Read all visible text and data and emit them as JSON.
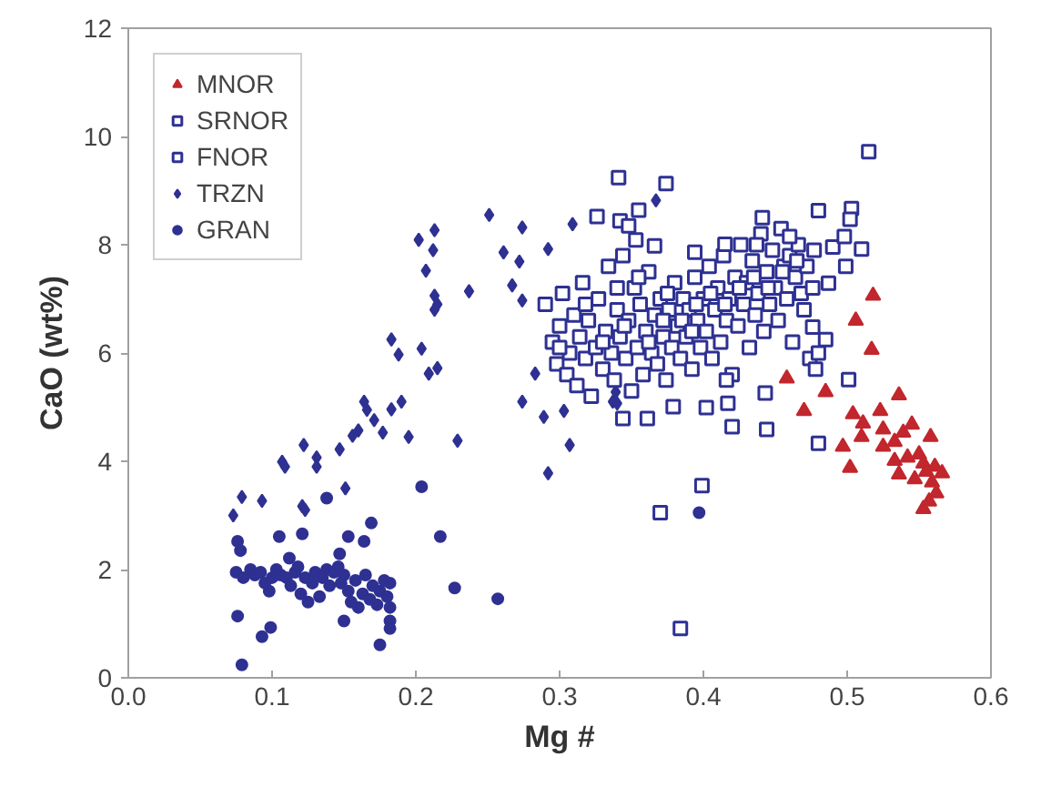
{
  "chart_data": {
    "type": "scatter",
    "xlabel": "Mg #",
    "ylabel": "CaO (wt%)",
    "xlim": [
      0,
      0.6
    ],
    "ylim": [
      0,
      12
    ],
    "xticks": [
      {
        "value": 0,
        "label": "0.0"
      },
      0.1,
      0.2,
      0.3,
      0.4,
      0.5,
      0.6
    ],
    "yticks": [
      0,
      2,
      4,
      6,
      8,
      10,
      12
    ],
    "grid": false,
    "legend": "top left",
    "series": [
      {
        "name": "MNOR",
        "color": "#c1272d",
        "marker": "triangle",
        "x": [
          0.518,
          0.506,
          0.517,
          0.458,
          0.485,
          0.536,
          0.47,
          0.504,
          0.523,
          0.511,
          0.51,
          0.525,
          0.497,
          0.502,
          0.525,
          0.533,
          0.539,
          0.545,
          0.558,
          0.533,
          0.536,
          0.542,
          0.547,
          0.55,
          0.553,
          0.555,
          0.561,
          0.566,
          0.559,
          0.562,
          0.557,
          0.553
        ],
        "values": [
          7.06,
          6.6,
          6.06,
          5.53,
          5.28,
          5.22,
          4.93,
          4.87,
          4.93,
          4.7,
          4.45,
          4.59,
          4.27,
          3.88,
          4.27,
          4.36,
          4.53,
          4.68,
          4.45,
          4.01,
          3.76,
          4.07,
          3.67,
          4.13,
          3.96,
          3.81,
          3.9,
          3.78,
          3.61,
          3.41,
          3.26,
          3.12
        ]
      },
      {
        "name": "SRNOR",
        "color": "#2e3192",
        "marker": "square",
        "x": [
          0.3,
          0.318,
          0.33,
          0.345,
          0.355,
          0.362,
          0.375,
          0.385,
          0.395,
          0.405,
          0.415,
          0.425,
          0.435,
          0.445,
          0.455,
          0.465,
          0.437,
          0.392,
          0.372,
          0.34,
          0.477,
          0.416
        ],
        "values": [
          6.1,
          6.9,
          6.2,
          6.5,
          7.4,
          6.2,
          7.1,
          6.6,
          6.9,
          7.1,
          6.9,
          7.2,
          7.4,
          7.2,
          7.5,
          7.7,
          8.0,
          6.4,
          6.6,
          7.2,
          7.9,
          5.5
        ]
      },
      {
        "name": "FNOR",
        "color": "#2e3192",
        "marker": "square",
        "x": [
          0.29,
          0.295,
          0.298,
          0.3,
          0.302,
          0.305,
          0.307,
          0.31,
          0.312,
          0.314,
          0.316,
          0.318,
          0.32,
          0.322,
          0.325,
          0.327,
          0.33,
          0.332,
          0.334,
          0.336,
          0.338,
          0.34,
          0.342,
          0.344,
          0.346,
          0.348,
          0.35,
          0.352,
          0.354,
          0.356,
          0.358,
          0.36,
          0.362,
          0.364,
          0.366,
          0.368,
          0.37,
          0.372,
          0.374,
          0.376,
          0.378,
          0.38,
          0.382,
          0.384,
          0.386,
          0.388,
          0.39,
          0.392,
          0.394,
          0.396,
          0.398,
          0.4,
          0.402,
          0.404,
          0.406,
          0.408,
          0.41,
          0.412,
          0.414,
          0.416,
          0.418,
          0.42,
          0.422,
          0.424,
          0.426,
          0.428,
          0.43,
          0.432,
          0.434,
          0.436,
          0.438,
          0.44,
          0.442,
          0.444,
          0.446,
          0.448,
          0.45,
          0.452,
          0.454,
          0.456,
          0.458,
          0.46,
          0.462,
          0.464,
          0.466,
          0.468,
          0.47,
          0.472,
          0.474,
          0.476,
          0.478,
          0.48,
          0.384,
          0.37,
          0.399,
          0.48,
          0.501,
          0.42,
          0.444,
          0.443,
          0.344,
          0.361,
          0.379,
          0.402,
          0.417,
          0.515,
          0.341,
          0.374,
          0.355,
          0.326,
          0.48,
          0.503,
          0.502,
          0.49,
          0.498,
          0.51,
          0.499,
          0.487,
          0.476,
          0.485,
          0.342,
          0.348,
          0.366,
          0.353,
          0.441,
          0.46,
          0.415,
          0.394
        ],
        "values": [
          6.9,
          6.2,
          5.8,
          6.5,
          7.1,
          5.6,
          6.0,
          6.7,
          5.4,
          6.3,
          7.3,
          5.9,
          6.6,
          5.2,
          6.1,
          7.0,
          5.7,
          6.4,
          7.6,
          6.0,
          5.5,
          6.8,
          6.3,
          7.8,
          5.9,
          6.6,
          5.3,
          7.2,
          6.1,
          6.9,
          5.6,
          6.4,
          7.5,
          6.0,
          6.7,
          5.8,
          7.0,
          6.3,
          5.5,
          6.8,
          6.1,
          7.3,
          6.5,
          5.9,
          7.0,
          6.3,
          6.8,
          5.7,
          7.4,
          6.6,
          6.1,
          7.0,
          6.4,
          7.6,
          5.9,
          6.8,
          7.2,
          6.2,
          7.8,
          6.6,
          7.0,
          5.6,
          7.4,
          6.5,
          8.0,
          6.9,
          7.3,
          6.1,
          7.7,
          6.7,
          7.1,
          8.2,
          6.4,
          7.5,
          6.9,
          7.9,
          7.2,
          6.6,
          8.3,
          7.6,
          7.0,
          7.8,
          6.2,
          7.4,
          8.0,
          7.1,
          6.8,
          7.6,
          5.9,
          7.2,
          5.7,
          6.0,
          0.91,
          3.05,
          3.55,
          4.33,
          5.51,
          4.64,
          4.59,
          5.26,
          4.79,
          4.79,
          5.01,
          4.99,
          5.07,
          9.72,
          9.24,
          9.13,
          8.64,
          8.52,
          8.63,
          8.67,
          8.47,
          7.96,
          8.15,
          7.92,
          7.6,
          7.29,
          6.48,
          6.25,
          8.44,
          8.35,
          7.98,
          8.09,
          8.5,
          8.15,
          8.01,
          7.86
        ]
      },
      {
        "name": "TRZN",
        "color": "#2e3192",
        "marker": "diamond",
        "x": [
          0.073,
          0.079,
          0.093,
          0.107,
          0.109,
          0.122,
          0.131,
          0.131,
          0.121,
          0.123,
          0.147,
          0.151,
          0.156,
          0.16,
          0.164,
          0.166,
          0.171,
          0.177,
          0.183,
          0.19,
          0.195,
          0.229,
          0.183,
          0.188,
          0.204,
          0.209,
          0.215,
          0.213,
          0.215,
          0.213,
          0.237,
          0.207,
          0.274,
          0.202,
          0.213,
          0.212,
          0.251,
          0.261,
          0.267,
          0.274,
          0.272,
          0.367,
          0.309,
          0.292,
          0.274,
          0.283,
          0.289,
          0.303,
          0.337,
          0.339,
          0.307,
          0.292,
          0.34
        ],
        "values": [
          3.0,
          3.34,
          3.27,
          3.99,
          3.9,
          4.3,
          4.07,
          3.9,
          3.17,
          3.1,
          4.22,
          3.5,
          4.47,
          4.57,
          5.1,
          4.95,
          4.76,
          4.53,
          4.96,
          5.1,
          4.45,
          4.38,
          6.25,
          5.97,
          6.08,
          5.62,
          5.72,
          7.06,
          6.9,
          6.8,
          7.14,
          7.52,
          5.1,
          8.09,
          8.27,
          7.9,
          8.55,
          7.86,
          7.25,
          8.32,
          7.69,
          8.82,
          8.38,
          7.92,
          6.97,
          5.62,
          4.82,
          4.93,
          5.1,
          5.28,
          4.3,
          3.78,
          5.07
        ]
      },
      {
        "name": "GRAN",
        "color": "#2e3192",
        "marker": "circle",
        "x": [
          0.204,
          0.217,
          0.227,
          0.257,
          0.138,
          0.169,
          0.079,
          0.093,
          0.099,
          0.076,
          0.15,
          0.175,
          0.182,
          0.182,
          0.105,
          0.121,
          0.076,
          0.078,
          0.153,
          0.164,
          0.147,
          0.112,
          0.397,
          0.075,
          0.08,
          0.085,
          0.088,
          0.092,
          0.095,
          0.098,
          0.1,
          0.103,
          0.106,
          0.11,
          0.113,
          0.116,
          0.118,
          0.12,
          0.123,
          0.125,
          0.128,
          0.13,
          0.133,
          0.135,
          0.138,
          0.14,
          0.143,
          0.146,
          0.148,
          0.15,
          0.153,
          0.155,
          0.158,
          0.16,
          0.163,
          0.165,
          0.168,
          0.17,
          0.173,
          0.175,
          0.178,
          0.18,
          0.182,
          0.182
        ],
        "values": [
          3.53,
          2.61,
          1.66,
          1.46,
          3.32,
          2.86,
          0.24,
          0.76,
          0.93,
          1.14,
          1.05,
          0.61,
          1.05,
          0.91,
          2.61,
          2.66,
          2.52,
          2.35,
          2.61,
          2.52,
          2.29,
          2.21,
          3.05,
          1.95,
          1.85,
          2.0,
          1.9,
          1.95,
          1.75,
          1.6,
          1.85,
          2.0,
          1.9,
          1.85,
          1.7,
          1.95,
          2.05,
          1.55,
          1.85,
          1.4,
          1.75,
          1.95,
          1.5,
          1.85,
          2.0,
          1.7,
          1.95,
          2.05,
          1.75,
          1.9,
          1.6,
          1.4,
          1.8,
          1.3,
          1.55,
          1.9,
          1.45,
          1.7,
          1.35,
          1.6,
          1.8,
          1.5,
          1.75,
          1.3
        ]
      }
    ]
  }
}
